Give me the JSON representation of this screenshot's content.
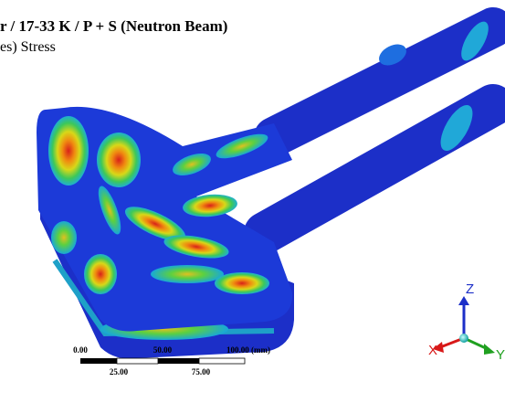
{
  "header": {
    "title": "r / 17-33 K / P + S (Neutron Beam)",
    "subtitle": "es) Stress"
  },
  "scale_bar": {
    "top_labels": [
      "0.00",
      "50.00",
      "100.00 (mm)"
    ],
    "bottom_labels": [
      "25.00",
      "75.00"
    ]
  },
  "triad": {
    "z": "Z",
    "x": "X",
    "y": "Y"
  }
}
